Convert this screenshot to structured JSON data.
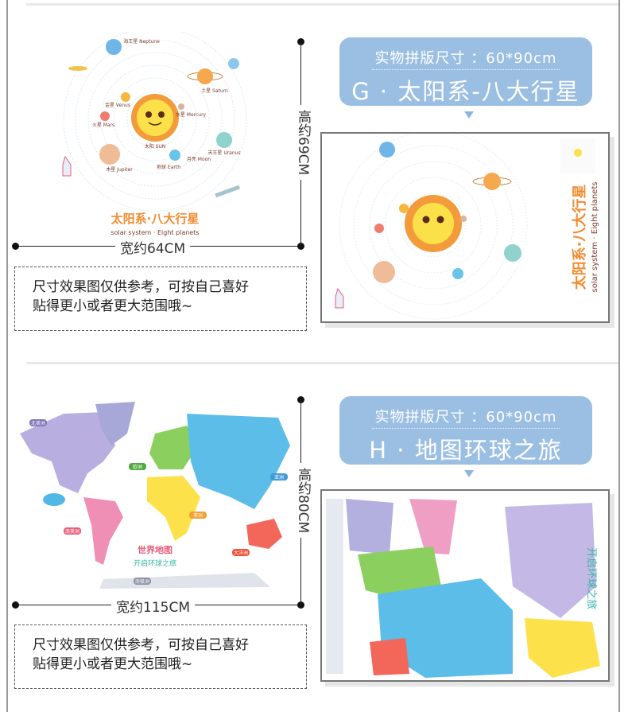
{
  "section_g": {
    "artwork": {
      "title": "太阳系·八大行星",
      "subtitle": "solar system · Eight planets",
      "planets": [
        "海王星 Neptune",
        "土星 Saturn",
        "金星 Venus",
        "水星 Mercury",
        "火星 Mars",
        "太阳 SUN",
        "天王星 Uranus",
        "木星 Jupiter",
        "地球 Earth",
        "月亮 Moon"
      ]
    },
    "width_label": "宽约64CM",
    "height_label": "高约69CM",
    "note_line1": "尺寸效果图仅供参考，可按自己喜好",
    "note_line2": "贴得更小或者更大范围哦~",
    "size_label": "实物拼版尺寸 ：60*90cm",
    "name_label": "G · 太阳系-八大行星"
  },
  "section_h": {
    "artwork": {
      "title": "世界地图",
      "subtitle": "开启环球之旅",
      "continents": [
        "北美洲",
        "欧洲",
        "亚洲",
        "非洲",
        "南美洲",
        "大洋洲",
        "南极洲"
      ]
    },
    "width_label": "宽约115CM",
    "height_label": "高约80CM",
    "note_line1": "尺寸效果图仅供参考，可按自己喜好",
    "note_line2": "贴得更小或者更大范围哦~",
    "size_label": "实物拼版尺寸 ：60*90cm",
    "name_label": "H · 地图环球之旅"
  },
  "colors": {
    "pill": "#9bbfe3",
    "sun": "#fbe04a",
    "sun_rays": "#f39a3a"
  }
}
